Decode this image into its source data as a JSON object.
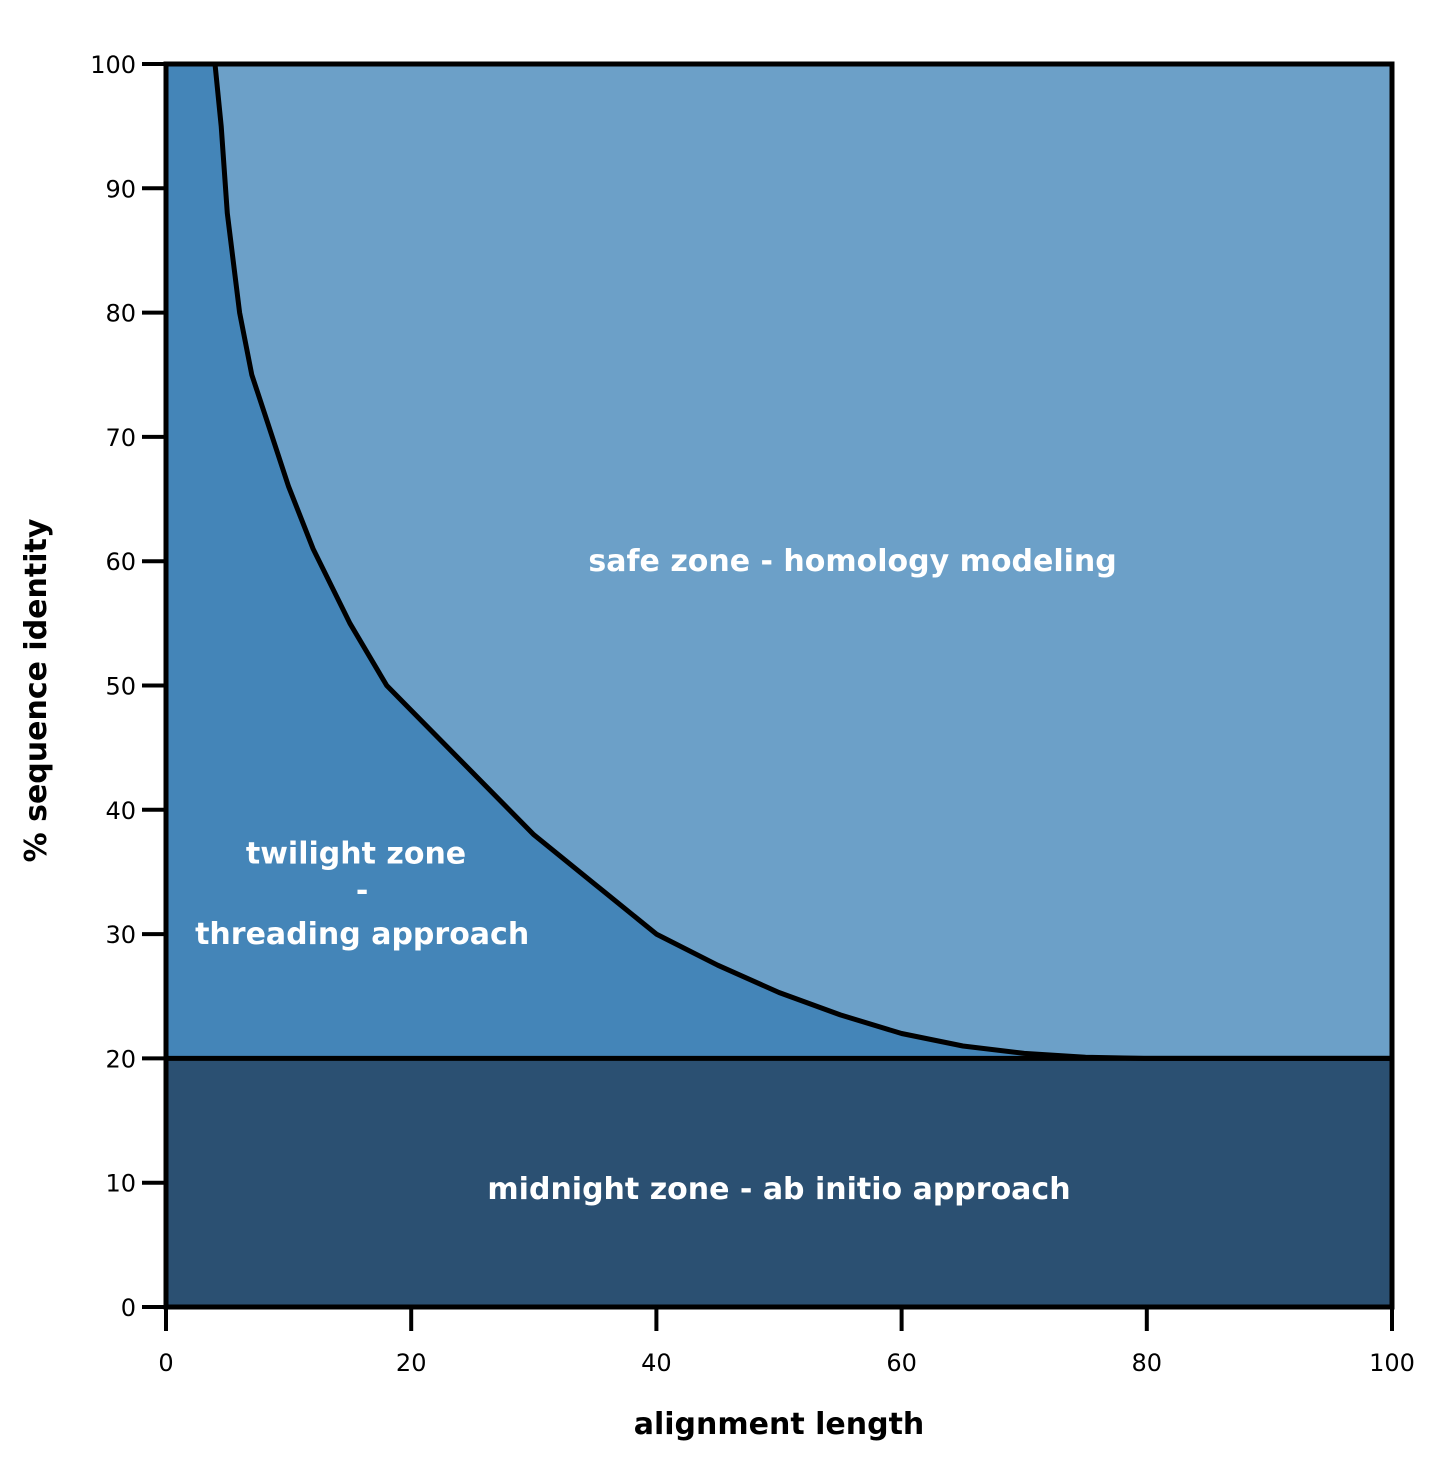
{
  "chart_data": {
    "type": "area",
    "xlabel": "alignment length",
    "ylabel": "% sequence identity",
    "xlim": [
      0,
      100
    ],
    "ylim": [
      0,
      100
    ],
    "x_ticks": [
      "0",
      "20",
      "40",
      "60",
      "80",
      "100"
    ],
    "y_ticks": [
      "0",
      "10",
      "20",
      "30",
      "40",
      "50",
      "60",
      "70",
      "80",
      "90",
      "100"
    ],
    "boundary_curve": {
      "x": [
        4,
        4.5,
        5,
        6,
        7,
        8,
        10,
        12,
        15,
        18,
        20,
        25,
        30,
        35,
        40,
        45,
        50,
        55,
        60,
        65,
        70,
        75,
        80,
        90,
        100
      ],
      "y": [
        100,
        95,
        88,
        80,
        75,
        72,
        66,
        61,
        55,
        50,
        48,
        43,
        38,
        34,
        30,
        27.5,
        25.3,
        23.5,
        22,
        21,
        20.4,
        20.1,
        20,
        20,
        20
      ]
    },
    "threshold_y": 20,
    "zones": [
      {
        "name": "safe zone",
        "label": "safe zone - homology modeling",
        "color": "#6ca0c8"
      },
      {
        "name": "twilight zone",
        "label_lines": [
          "twilight zone",
          "-",
          "threading approach"
        ],
        "color": "#4485b8"
      },
      {
        "name": "midnight zone",
        "label": "midnight zone - ab initio approach",
        "color": "#2b5072"
      }
    ]
  }
}
